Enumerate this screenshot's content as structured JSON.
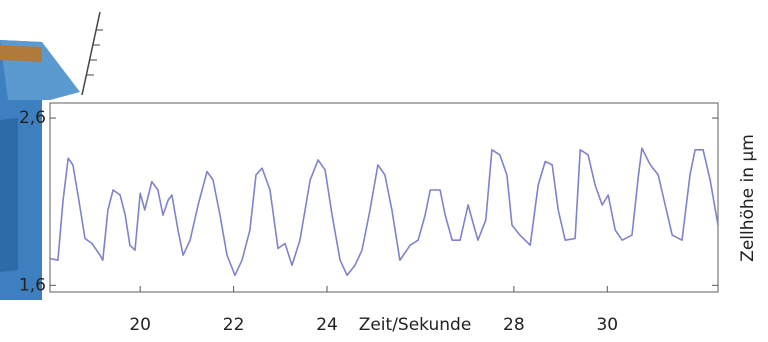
{
  "chart_data": {
    "type": "line",
    "x_label": "Zeit/Sekunde",
    "y_label": "Zellhöhe in µm",
    "xlim": [
      18.07,
      32.37
    ],
    "xticks": [
      20,
      22,
      24,
      28,
      30
    ],
    "ylim": [
      1.56,
      2.69
    ],
    "yticks": [
      {
        "value": 1.6,
        "label": "1,6"
      },
      {
        "value": 2.6,
        "label": "2,6"
      }
    ],
    "grid": false,
    "series": [
      {
        "color": "#7f82cc",
        "x": [
          18.07,
          18.24,
          18.35,
          18.46,
          18.56,
          18.67,
          18.82,
          18.97,
          19.14,
          19.2,
          19.31,
          19.42,
          19.57,
          19.68,
          19.78,
          19.89,
          20.0,
          20.1,
          20.25,
          20.38,
          20.49,
          20.6,
          20.68,
          20.81,
          20.92,
          21.07,
          21.24,
          21.43,
          21.56,
          21.71,
          21.86,
          22.03,
          22.18,
          22.35,
          22.48,
          22.61,
          22.78,
          22.95,
          23.1,
          23.25,
          23.42,
          23.64,
          23.81,
          23.96,
          24.11,
          24.28,
          24.43,
          24.6,
          24.75,
          24.92,
          25.09,
          25.24,
          25.39,
          25.56,
          25.78,
          25.95,
          26.1,
          26.21,
          26.42,
          26.53,
          26.68,
          26.85,
          27.02,
          27.11,
          27.23,
          27.4,
          27.53,
          27.7,
          27.85,
          27.96,
          28.13,
          28.35,
          28.52,
          28.67,
          28.82,
          28.95,
          29.1,
          29.31,
          29.42,
          29.59,
          29.74,
          29.89,
          30.02,
          30.17,
          30.32,
          30.53,
          30.66,
          30.74,
          30.92,
          31.09,
          31.24,
          31.39,
          31.6,
          31.77,
          31.88,
          32.05,
          32.2,
          32.37
        ],
        "values": [
          1.76,
          1.75,
          2.11,
          2.36,
          2.32,
          2.14,
          1.88,
          1.85,
          1.78,
          1.75,
          2.05,
          2.17,
          2.14,
          2.02,
          1.84,
          1.81,
          2.15,
          2.05,
          2.22,
          2.17,
          2.02,
          2.11,
          2.14,
          1.93,
          1.78,
          1.87,
          2.08,
          2.28,
          2.23,
          2.02,
          1.78,
          1.66,
          1.75,
          1.93,
          2.26,
          2.3,
          2.17,
          1.82,
          1.85,
          1.72,
          1.87,
          2.23,
          2.35,
          2.29,
          2.02,
          1.75,
          1.66,
          1.72,
          1.81,
          2.05,
          2.32,
          2.26,
          2.05,
          1.75,
          1.84,
          1.87,
          2.02,
          2.17,
          2.17,
          2.02,
          1.87,
          1.87,
          2.08,
          1.99,
          1.87,
          1.99,
          2.41,
          2.38,
          2.26,
          1.96,
          1.9,
          1.84,
          2.2,
          2.34,
          2.32,
          2.05,
          1.87,
          1.88,
          2.41,
          2.38,
          2.2,
          2.08,
          2.14,
          1.93,
          1.87,
          1.9,
          2.24,
          2.42,
          2.32,
          2.26,
          2.08,
          1.9,
          1.87,
          2.26,
          2.41,
          2.41,
          2.23,
          1.96
        ]
      }
    ]
  }
}
